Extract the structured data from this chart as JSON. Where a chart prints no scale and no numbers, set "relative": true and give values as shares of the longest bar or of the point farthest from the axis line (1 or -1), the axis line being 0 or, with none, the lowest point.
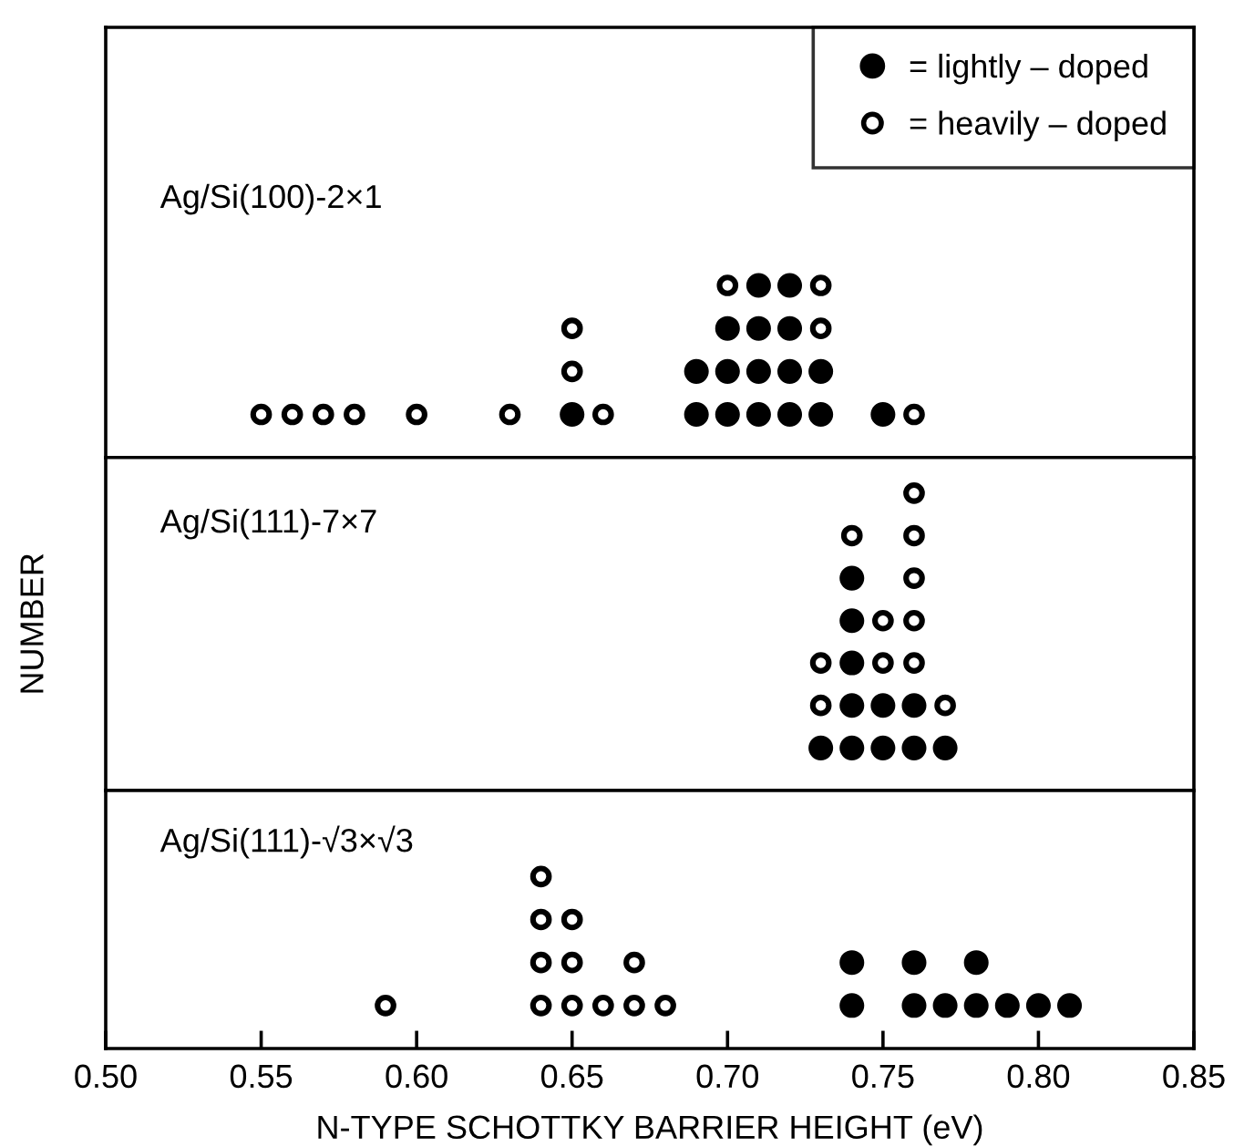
{
  "chart_data": [
    {
      "type": "scatter",
      "title": "Ag/Si(100)-2×1",
      "relative": true,
      "xlim": [
        0.5,
        0.85
      ],
      "tick_labels": false,
      "legend": "top right",
      "marker": "circle",
      "series": [
        {
          "name": "= lightly – doped",
          "color": "#000000",
          "x": [
            0.65,
            0.69,
            0.69,
            0.7,
            0.7,
            0.7,
            0.71,
            0.71,
            0.71,
            0.71,
            0.72,
            0.72,
            0.72,
            0.72,
            0.73,
            0.73,
            0.75
          ],
          "values": [
            0.25,
            0.25,
            0.5,
            0.25,
            0.5,
            0.75,
            0.25,
            0.5,
            0.75,
            1,
            0.25,
            0.5,
            0.75,
            1,
            0.25,
            0.5,
            0.25
          ]
        },
        {
          "name": "= heavily – doped",
          "color": "#ffffff",
          "x": [
            0.55,
            0.56,
            0.57,
            0.58,
            0.6,
            0.63,
            0.65,
            0.65,
            0.66,
            0.7,
            0.73,
            0.73,
            0.76
          ],
          "values": [
            0.25,
            0.25,
            0.25,
            0.25,
            0.25,
            0.25,
            0.5,
            0.75,
            0.25,
            1,
            0.75,
            1,
            0.25
          ]
        }
      ]
    },
    {
      "type": "scatter",
      "title": "Ag/Si(111)-7×7",
      "relative": true,
      "xlim": [
        0.5,
        0.85
      ],
      "tick_labels": false,
      "ylabel": "NUMBER",
      "marker": "circle",
      "series": [
        {
          "color": "#000000",
          "x": [
            0.73,
            0.74,
            0.74,
            0.74,
            0.74,
            0.74,
            0.75,
            0.75,
            0.76,
            0.76,
            0.77
          ],
          "values": [
            0.143,
            0.143,
            0.286,
            0.429,
            0.571,
            0.714,
            0.143,
            0.286,
            0.143,
            0.286,
            0.143
          ]
        },
        {
          "color": "#ffffff",
          "x": [
            0.73,
            0.73,
            0.74,
            0.75,
            0.75,
            0.76,
            0.76,
            0.76,
            0.76,
            0.76,
            0.77
          ],
          "values": [
            0.286,
            0.429,
            0.857,
            0.429,
            0.571,
            0.429,
            0.571,
            0.714,
            0.857,
            1,
            0.286
          ]
        }
      ]
    },
    {
      "type": "scatter",
      "title": "Ag/Si(111)-√3×√3",
      "relative": true,
      "xlim": [
        0.5,
        0.85
      ],
      "tick_labels": "x",
      "xlabel": "N-TYPE SCHOTTKY BARRIER HEIGHT (eV)",
      "marker": "circle",
      "xticks": [
        {
          "value": 0.5,
          "label": "0.50"
        },
        {
          "value": 0.55,
          "label": "0.55"
        },
        {
          "value": 0.6,
          "label": "0.60"
        },
        {
          "value": 0.65,
          "label": "0.65"
        },
        {
          "value": 0.7,
          "label": "0.70"
        },
        {
          "value": 0.75,
          "label": "0.75"
        },
        {
          "value": 0.8,
          "label": "0.80"
        },
        {
          "value": 0.85,
          "label": "0.85"
        }
      ],
      "series": [
        {
          "color": "#ffffff",
          "x": [
            0.59,
            0.64,
            0.64,
            0.64,
            0.64,
            0.65,
            0.65,
            0.65,
            0.66,
            0.67,
            0.67,
            0.68
          ],
          "values": [
            0.25,
            0.25,
            0.5,
            0.75,
            1,
            0.25,
            0.5,
            0.75,
            0.25,
            0.25,
            0.5,
            0.25
          ]
        },
        {
          "color": "#000000",
          "x": [
            0.74,
            0.74,
            0.76,
            0.76,
            0.77,
            0.78,
            0.78,
            0.79,
            0.8,
            0.81
          ],
          "values": [
            0.25,
            0.5,
            0.25,
            0.5,
            0.25,
            0.25,
            0.5,
            0.25,
            0.25,
            0.25
          ]
        }
      ]
    }
  ]
}
